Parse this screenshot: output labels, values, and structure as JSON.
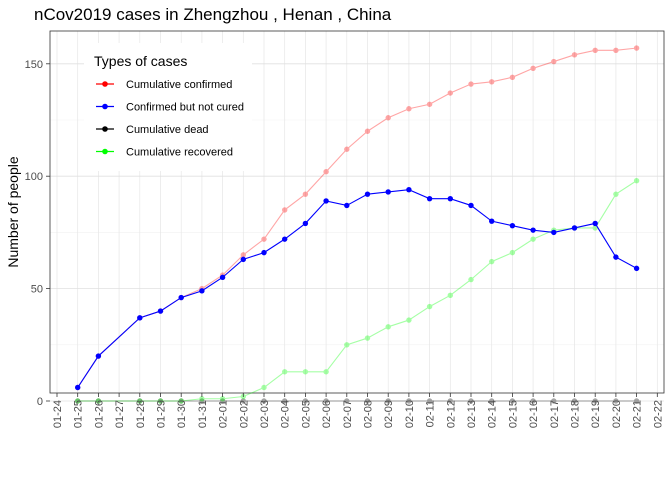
{
  "chart_data": {
    "type": "line",
    "title": "nCov2019 cases in Zhengzhou , Henan , China",
    "ylabel": "Number of people",
    "xlabel": "",
    "ylim": [
      0,
      160
    ],
    "yticks": [
      0,
      50,
      100,
      150
    ],
    "grid": true,
    "legend_title": "Types of cases",
    "legend_position": "top-left",
    "x": [
      "01-25",
      "01-26",
      "01-28",
      "01-29",
      "01-30",
      "01-31",
      "02-01",
      "02-02",
      "02-03",
      "02-04",
      "02-05",
      "02-06",
      "02-07",
      "02-08",
      "02-09",
      "02-10",
      "02-11",
      "02-12",
      "02-13",
      "02-14",
      "02-15",
      "02-16",
      "02-17",
      "02-18",
      "02-19",
      "02-20",
      "02-21"
    ],
    "xticks": [
      "01-24",
      "01-25",
      "01-26",
      "01-27",
      "01-28",
      "01-29",
      "01-30",
      "01-31",
      "02-01",
      "02-02",
      "02-03",
      "02-04",
      "02-05",
      "02-06",
      "02-07",
      "02-08",
      "02-09",
      "02-10",
      "02-11",
      "02-12",
      "02-13",
      "02-14",
      "02-15",
      "02-16",
      "02-17",
      "02-18",
      "02-19",
      "02-20",
      "02-21",
      "02-22"
    ],
    "series": [
      {
        "name": "Cumulative confirmed",
        "color": "#ff0000",
        "alpha": 0.35,
        "legend_color": "#ff0000",
        "values": [
          6,
          20,
          37,
          40,
          46,
          50,
          56,
          65,
          72,
          85,
          92,
          102,
          112,
          120,
          126,
          130,
          132,
          137,
          141,
          142,
          144,
          148,
          151,
          154,
          156,
          156,
          157
        ]
      },
      {
        "name": "Confirmed but not cured",
        "color": "#0000ff",
        "alpha": 1,
        "legend_color": "#0000ff",
        "values": [
          6,
          20,
          37,
          40,
          46,
          49,
          55,
          63,
          66,
          72,
          79,
          89,
          87,
          92,
          93,
          94,
          90,
          90,
          87,
          80,
          78,
          76,
          75,
          77,
          79,
          64,
          59
        ]
      },
      {
        "name": "Cumulative dead",
        "color": "#000000",
        "alpha": 0.35,
        "legend_color": "#000000",
        "values": [
          0,
          0,
          0,
          0,
          0,
          0,
          0,
          0,
          0,
          0,
          0,
          0,
          0,
          0,
          0,
          0,
          0,
          0,
          0,
          0,
          0,
          0,
          0,
          0,
          0,
          0,
          0
        ]
      },
      {
        "name": "Cumulative recovered",
        "color": "#00ff00",
        "alpha": 0.35,
        "legend_color": "#00ff00",
        "values": [
          0,
          0,
          0,
          0,
          0,
          1,
          1,
          2,
          6,
          13,
          13,
          13,
          25,
          28,
          33,
          36,
          42,
          47,
          54,
          62,
          66,
          72,
          76,
          77,
          77,
          92,
          98
        ]
      }
    ]
  }
}
